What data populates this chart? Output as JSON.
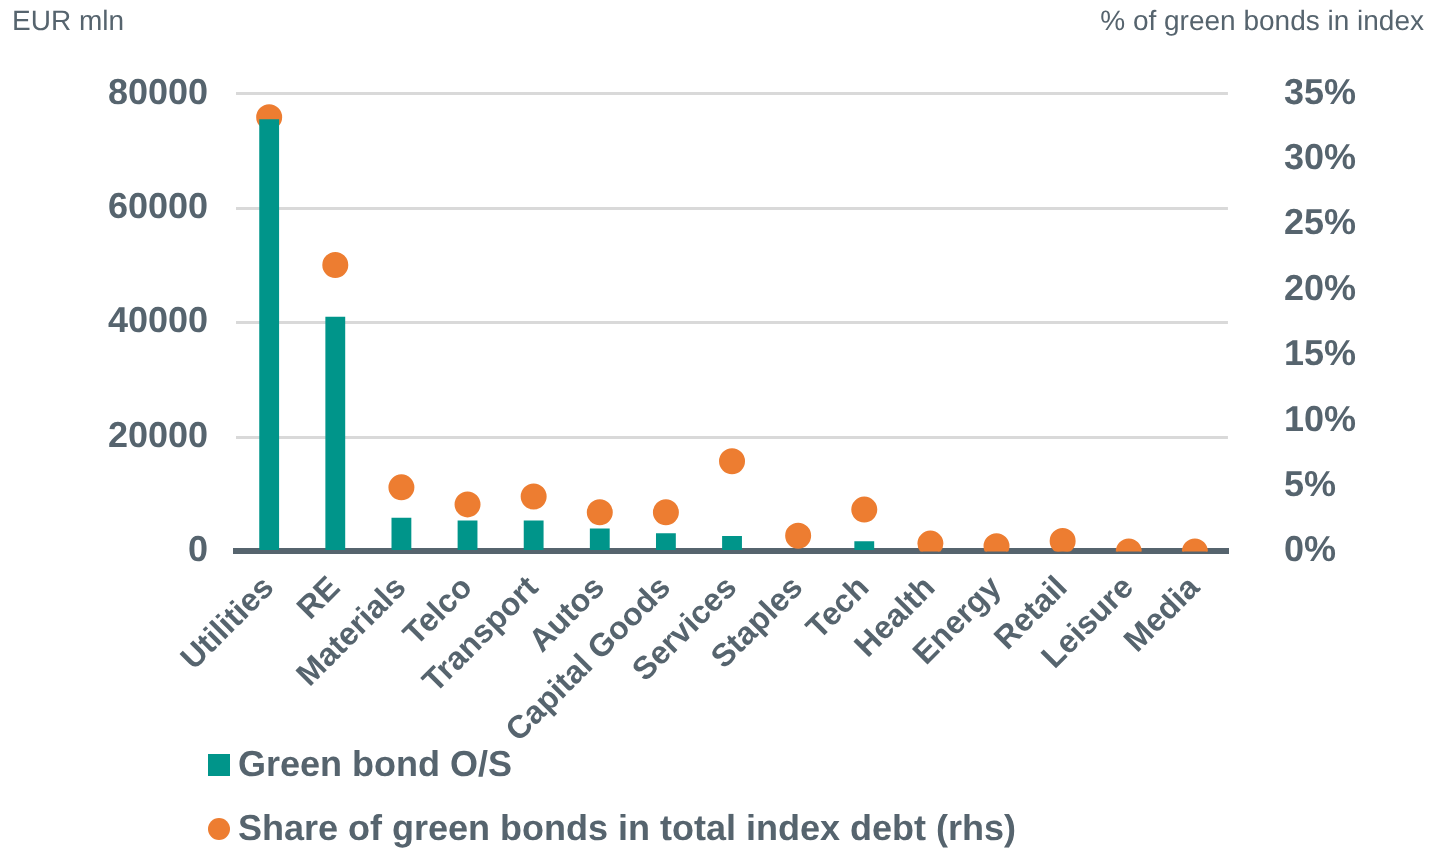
{
  "chart_data": {
    "type": "bar",
    "ylabel": "EUR mln",
    "y2label": "% of green bonds in index",
    "categories": [
      "Utilities",
      "RE",
      "Materials",
      "Telco",
      "Transport",
      "Autos",
      "Capital Goods",
      "Services",
      "Staples",
      "Tech",
      "Health",
      "Energy",
      "Retail",
      "Leisure",
      "Media"
    ],
    "series": [
      {
        "name": "Green bond O/S",
        "color": "#00958a",
        "values": [
          75500,
          41000,
          5900,
          5400,
          5400,
          4000,
          3200,
          2700,
          0,
          1800,
          0,
          0,
          0,
          0,
          0
        ]
      },
      {
        "name": "Share of green bonds in total index debt (rhs)",
        "type": "scatter",
        "axis": "y2",
        "color": "#ed7d31",
        "values": [
          33.2,
          21.9,
          4.9,
          3.6,
          4.2,
          3.0,
          3.0,
          6.9,
          1.2,
          3.2,
          0.6,
          0.4,
          0.8,
          0,
          0
        ]
      }
    ],
    "ylim": [
      0,
      80000
    ],
    "yticks": [
      0,
      20000,
      40000,
      60000,
      80000
    ],
    "y2lim": [
      0,
      35
    ],
    "y2ticks": [
      {
        "value": 0,
        "label": "0%"
      },
      {
        "value": 5,
        "label": "5%"
      },
      {
        "value": 10,
        "label": "10%"
      },
      {
        "value": 15,
        "label": "15%"
      },
      {
        "value": 20,
        "label": "20%"
      },
      {
        "value": 25,
        "label": "25%"
      },
      {
        "value": 30,
        "label": "30%"
      },
      {
        "value": 35,
        "label": "35%"
      }
    ],
    "grid": "y",
    "legend": "bottom",
    "marker": "circle"
  }
}
